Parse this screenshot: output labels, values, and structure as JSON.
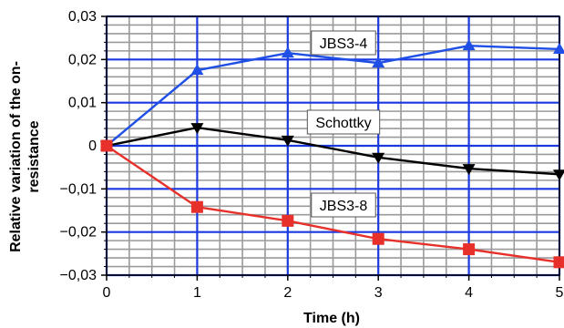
{
  "chart_data": {
    "type": "line",
    "xlabel": "Time (h)",
    "ylabel_lines": [
      "Relative variation of the on-",
      "resistance"
    ],
    "xlim": [
      0,
      5
    ],
    "ylim": [
      -0.03,
      0.03
    ],
    "xticks": [
      0,
      1,
      2,
      3,
      4,
      5
    ],
    "xtick_labels": [
      "0",
      "1",
      "2",
      "3",
      "4",
      "5"
    ],
    "yticks": [
      -0.03,
      -0.02,
      -0.01,
      0,
      0.01,
      0.02,
      0.03
    ],
    "ytick_labels": [
      "−0,03",
      "−0,02",
      "−0,01",
      "0",
      "0,01",
      "0,02",
      "0,03"
    ],
    "grid": true,
    "grid_colors": {
      "major": "#1a3ae0",
      "minor": "#9a9a9a"
    },
    "x": [
      0,
      1,
      2,
      3,
      4,
      5
    ],
    "series": [
      {
        "name": "JBS3-4",
        "marker": "triangle-up",
        "color": "#1f4fe6",
        "values": [
          0,
          0.0175,
          0.0215,
          0.0192,
          0.0232,
          0.0224
        ]
      },
      {
        "name": "Schottky",
        "marker": "triangle-down",
        "color": "#000000",
        "values": [
          0,
          0.0042,
          0.0013,
          -0.0027,
          -0.0053,
          -0.0066
        ]
      },
      {
        "name": "JBS3-8",
        "marker": "square",
        "color": "#e8302a",
        "values": [
          0,
          -0.0142,
          -0.0174,
          -0.0216,
          -0.024,
          -0.027
        ]
      }
    ]
  }
}
